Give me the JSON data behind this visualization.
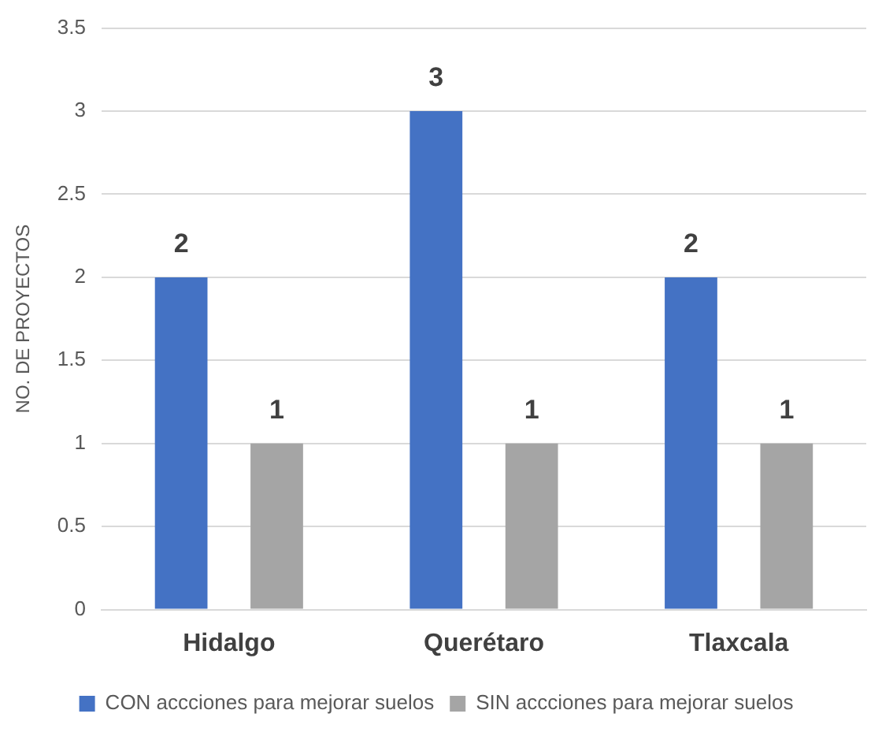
{
  "chart_data": {
    "type": "bar",
    "ylabel": "NO. DE PROYECTOS",
    "categories": [
      "Hidalgo",
      "Querétaro",
      "Tlaxcala"
    ],
    "series": [
      {
        "name": "CON accciones para mejorar suelos",
        "color": "#4472c4",
        "values": [
          2,
          3,
          2
        ]
      },
      {
        "name": "SIN accciones para mejorar suelos",
        "color": "#a5a5a5",
        "values": [
          1,
          1,
          1
        ]
      }
    ],
    "ylim": [
      0,
      3.5
    ],
    "yticks": [
      0,
      0.5,
      1,
      1.5,
      2,
      2.5,
      3,
      3.5
    ],
    "grid": "y",
    "legend": "bottom",
    "data_labels": true
  }
}
